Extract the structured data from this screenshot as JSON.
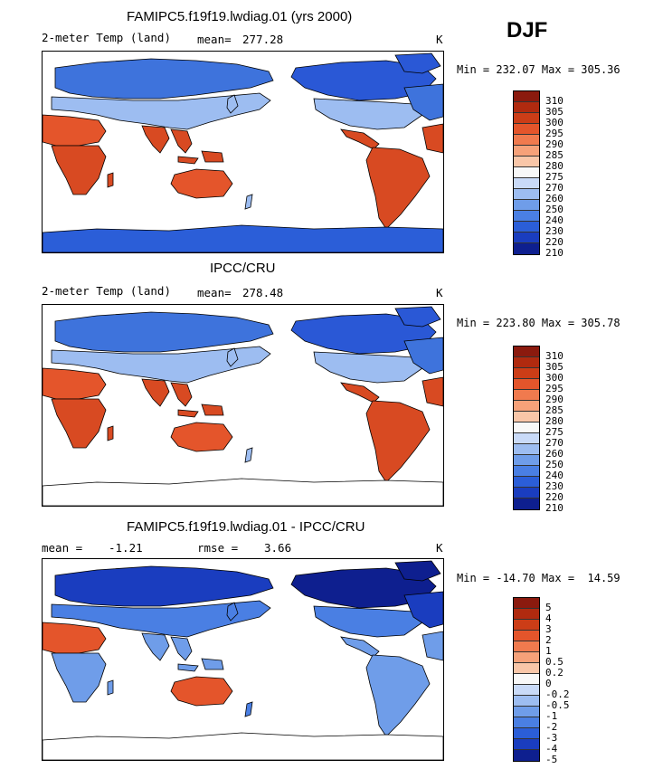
{
  "season": "DJF",
  "panels": [
    {
      "title": "FAMIPC5.f19f19.lwdiag.01 (yrs 2000)",
      "variable": "2-meter Temp (land)",
      "stat1": "mean=",
      "stat1_value": "277.28",
      "stat2": "",
      "stat2_value": "",
      "units": "K",
      "minmax": "Min = 232.07 Max = 305.36",
      "colorbar": {
        "labels": [
          "310",
          "305",
          "300",
          "295",
          "290",
          "285",
          "280",
          "275",
          "270",
          "260",
          "250",
          "240",
          "230",
          "220",
          "210"
        ],
        "colors": [
          "#8b1a0e",
          "#b02a0f",
          "#cc3d17",
          "#e4552b",
          "#f07a4e",
          "#f6a179",
          "#f9c6a8",
          "#f8f8f8",
          "#c9daf8",
          "#9dbdf1",
          "#6f9de9",
          "#4a7fe3",
          "#2b5ed8",
          "#1a3dbf",
          "#0e1f8f"
        ]
      },
      "icons": {
        "region_colors": {
          "north": "#3e73dc",
          "arctic": "#2a58d6",
          "midlat": "#9dbdf1",
          "subtrop": "#f6a179",
          "tropics": "#d84a22",
          "desert": "#e4552b",
          "antarctica": "#2b5ed8"
        }
      }
    },
    {
      "title": "IPCC/CRU",
      "variable": "2-meter Temp (land)",
      "stat1": "mean=",
      "stat1_value": "278.48",
      "stat2": "",
      "stat2_value": "",
      "units": "K",
      "minmax": "Min = 223.80 Max = 305.78",
      "colorbar": {
        "labels": [
          "310",
          "305",
          "300",
          "295",
          "290",
          "285",
          "280",
          "275",
          "270",
          "260",
          "250",
          "240",
          "230",
          "220",
          "210"
        ],
        "colors": [
          "#8b1a0e",
          "#b02a0f",
          "#cc3d17",
          "#e4552b",
          "#f07a4e",
          "#f6a179",
          "#f9c6a8",
          "#f8f8f8",
          "#c9daf8",
          "#9dbdf1",
          "#6f9de9",
          "#4a7fe3",
          "#2b5ed8",
          "#1a3dbf",
          "#0e1f8f"
        ]
      },
      "icons": {
        "region_colors": {
          "north": "#3e73dc",
          "arctic": "#2a58d6",
          "midlat": "#9dbdf1",
          "subtrop": "#f07a4e",
          "tropics": "#d84a22",
          "desert": "#e4552b",
          "antarctica": "#ffffff"
        }
      }
    },
    {
      "title": "FAMIPC5.f19f19.lwdiag.01 - IPCC/CRU",
      "variable": "",
      "stat1": "mean =",
      "stat1_value": "-1.21",
      "stat2": "rmse =",
      "stat2_value": "3.66",
      "units": "K",
      "minmax": "Min = -14.70 Max =  14.59",
      "colorbar": {
        "labels": [
          "5",
          "4",
          "3",
          "2",
          "1",
          "0.5",
          "0.2",
          "0",
          "-0.2",
          "-0.5",
          "-1",
          "-2",
          "-3",
          "-4",
          "-5"
        ],
        "colors": [
          "#8b1a0e",
          "#b02a0f",
          "#cc3d17",
          "#e4552b",
          "#f07a4e",
          "#f6a179",
          "#f9c6a8",
          "#f8f8f8",
          "#c9daf8",
          "#9dbdf1",
          "#6f9de9",
          "#4a7fe3",
          "#2b5ed8",
          "#1a3dbf",
          "#0e1f8f"
        ]
      },
      "icons": {
        "region_colors": {
          "north": "#1a3dbf",
          "arctic": "#0e1f8f",
          "midlat": "#4a7fe3",
          "subtrop": "#6f9de9",
          "tropics": "#6f9de9",
          "desert": "#e4552b",
          "antarctica": "#ffffff"
        }
      }
    }
  ]
}
